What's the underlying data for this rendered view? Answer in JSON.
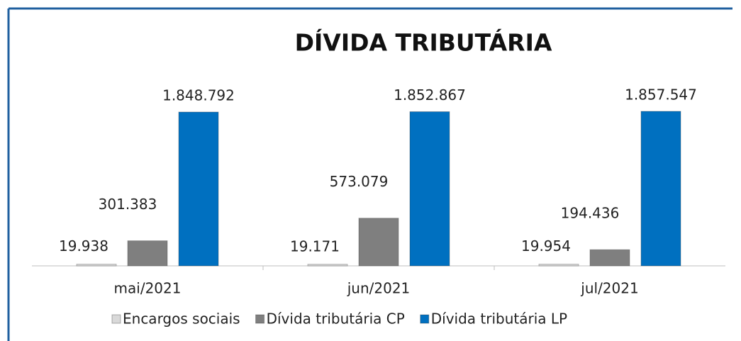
{
  "chart_data": {
    "type": "bar",
    "title": "DÍVIDA TRIBUTÁRIA",
    "categories": [
      "mai/2021",
      "jun/2021",
      "jul/2021"
    ],
    "series": [
      {
        "name": "Encargos sociais",
        "color": "#d9d9d9",
        "values": [
          19938,
          19171,
          19954
        ],
        "value_labels": [
          "19.938",
          "19.171",
          "19.954"
        ]
      },
      {
        "name": "Dívida tributária CP",
        "color": "#7f7f7f",
        "values": [
          301383,
          573079,
          194436
        ],
        "value_labels": [
          "301.383",
          "573.079",
          "194.436"
        ]
      },
      {
        "name": "Dívida tributária LP",
        "color": "#0070c0",
        "values": [
          1848792,
          1852867,
          1857547
        ],
        "value_labels": [
          "1.848.792",
          "1.852.867",
          "1.857.547"
        ]
      }
    ],
    "legend": "bottom"
  }
}
